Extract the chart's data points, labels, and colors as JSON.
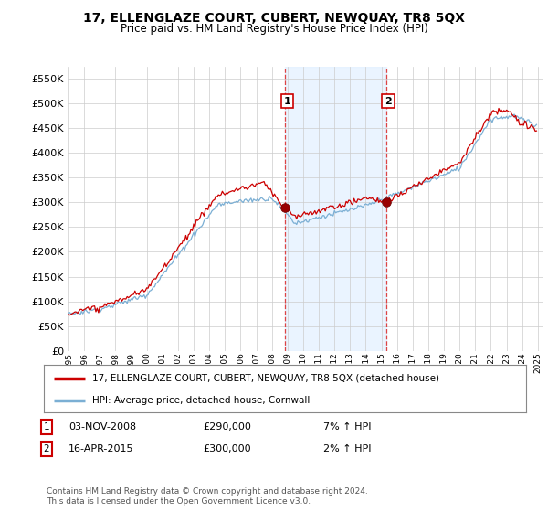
{
  "title": "17, ELLENGLAZE COURT, CUBERT, NEWQUAY, TR8 5QX",
  "subtitle": "Price paid vs. HM Land Registry's House Price Index (HPI)",
  "ylim": [
    0,
    575000
  ],
  "yticks": [
    0,
    50000,
    100000,
    150000,
    200000,
    250000,
    300000,
    350000,
    400000,
    450000,
    500000,
    550000
  ],
  "line1_color": "#cc0000",
  "line2_color": "#7bafd4",
  "line1_label": "17, ELLENGLAZE COURT, CUBERT, NEWQUAY, TR8 5QX (detached house)",
  "line2_label": "HPI: Average price, detached house, Cornwall",
  "sale1_date": 2008.84,
  "sale1_price": 290000,
  "sale1_label": "1",
  "sale2_date": 2015.29,
  "sale2_price": 300000,
  "sale2_label": "2",
  "footer": "Contains HM Land Registry data © Crown copyright and database right 2024.\nThis data is licensed under the Open Government Licence v3.0.",
  "background_color": "#ffffff",
  "plot_bg_color": "#ffffff",
  "grid_color": "#cccccc",
  "vline_color": "#dd4444",
  "shade_color": "#ddeeff",
  "label_box_color": "#cc0000"
}
